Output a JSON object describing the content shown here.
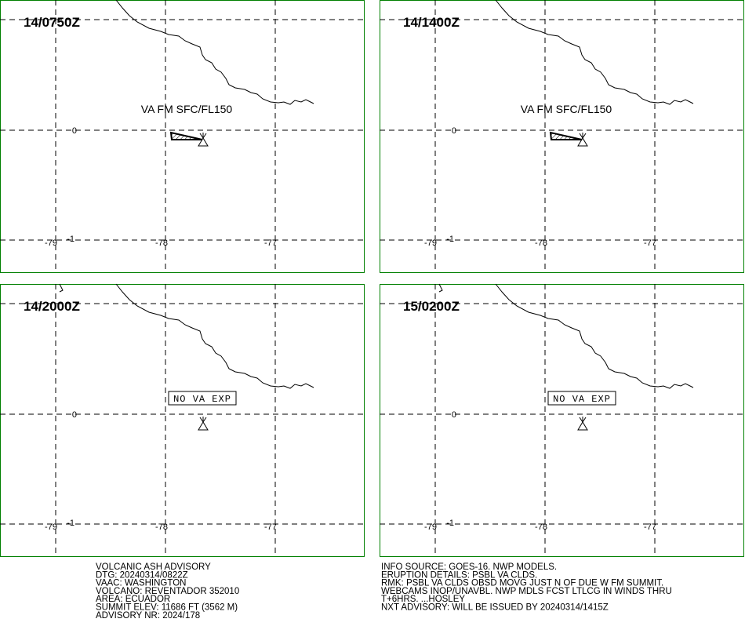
{
  "panels": [
    {
      "time": "14/0750Z",
      "annotation": "VA FM SFC/FL150",
      "lat_labels": [
        "0",
        "-1"
      ],
      "lon_labels": [
        "-79",
        "-78",
        "-77"
      ]
    },
    {
      "time": "14/1400Z",
      "annotation": "VA FM SFC/FL150",
      "lat_labels": [
        "0",
        "-1"
      ],
      "lon_labels": [
        "-79",
        "-78",
        "-77"
      ]
    },
    {
      "time": "14/2000Z",
      "annotation": "NO VA EXP",
      "lat_labels": [
        "0",
        "-1"
      ],
      "lon_labels": [
        "-79",
        "-78",
        "-77"
      ]
    },
    {
      "time": "15/0200Z",
      "annotation": "NO VA EXP",
      "lat_labels": [
        "0",
        "-1"
      ],
      "lon_labels": [
        "-79",
        "-78",
        "-77"
      ]
    }
  ],
  "advisory_left": [
    "VOLCANIC ASH ADVISORY",
    "DTG: 20240314/0822Z",
    "VAAC: WASHINGTON",
    "VOLCANO: REVENTADOR 352010",
    "AREA: ECUADOR",
    "SUMMIT ELEV: 11686 FT (3562 M)",
    "ADVISORY NR: 2024/178"
  ],
  "advisory_right": [
    "INFO SOURCE: GOES-16. NWP MODELS.",
    "ERUPTION DETAILS: PSBL VA CLDS.",
    "RMK: PSBL VA CLDS OBSD MOVG JUST N OF DUE W FM SUMMIT.",
    "WEBCAMS INOP/UNAVBL. NWP MDLS FCST LTLCG IN WINDS THRU",
    "T+6HRS. ...HOSLEY",
    "NXT ADVISORY: WILL BE ISSUED BY 20240314/1415Z"
  ]
}
